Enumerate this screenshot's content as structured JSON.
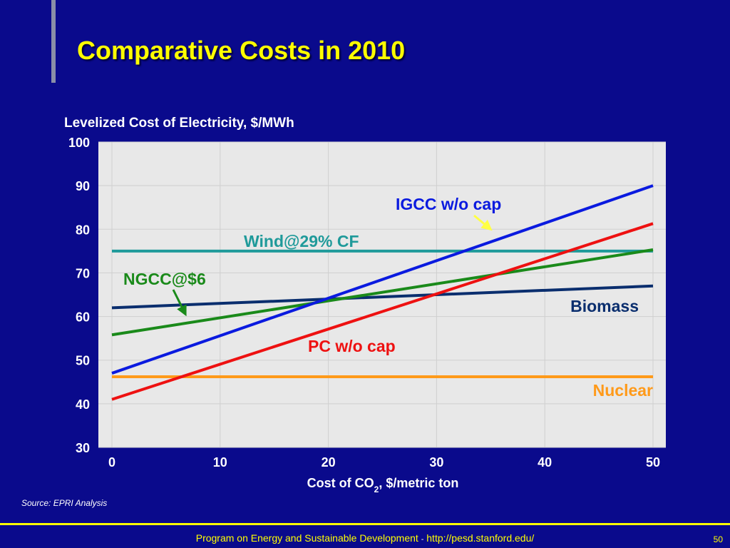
{
  "slide": {
    "title": "Comparative Costs in 2010",
    "source": "Source: EPRI Analysis",
    "footer": {
      "text": "Program on Energy and Sustainable Development",
      "separator": "-",
      "url": "http://pesd.stanford.edu/"
    },
    "page_number": "50"
  },
  "chart_data": {
    "type": "line",
    "ylabel": "Levelized Cost of Electricity, $/MWh",
    "xlabel_main": "Cost of CO",
    "xlabel_sub": "2",
    "xlabel_rest": ", $/metric ton",
    "xlim": [
      0,
      50
    ],
    "ylim": [
      30,
      100
    ],
    "xticks": [
      0,
      10,
      20,
      30,
      40,
      50
    ],
    "yticks": [
      30,
      40,
      50,
      60,
      70,
      80,
      90,
      100
    ],
    "grid": true,
    "series": [
      {
        "name": "Nuclear",
        "color": "#ff9a1a",
        "x": [
          0,
          50
        ],
        "y": [
          46.2,
          46.2
        ]
      },
      {
        "name": "Wind@29% CF",
        "color": "#1f9a9a",
        "x": [
          0,
          50
        ],
        "y": [
          75,
          75
        ]
      },
      {
        "name": "Biomass",
        "color": "#0a2e6e",
        "x": [
          0,
          50
        ],
        "y": [
          62,
          67
        ]
      },
      {
        "name": "NGCC@$6",
        "color": "#1a8a1a",
        "x": [
          0,
          50
        ],
        "y": [
          55.8,
          75.3
        ]
      },
      {
        "name": "PC w/o cap",
        "color": "#ee1111",
        "x": [
          0,
          50
        ],
        "y": [
          41,
          81.3
        ]
      },
      {
        "name": "IGCC w/o cap",
        "color": "#0a1adf",
        "x": [
          0,
          50
        ],
        "y": [
          47,
          90
        ]
      }
    ],
    "annotations": [
      {
        "text": "IGCC w/o cap",
        "color": "#0a1adf",
        "arrow": true,
        "arrow_color": "#ffff44",
        "arrow_target": [
          35,
          80
        ]
      },
      {
        "text": "Wind@29% CF",
        "color": "#1f9a9a",
        "arrow": false
      },
      {
        "text": "NGCC@$6",
        "color": "#1a8a1a",
        "arrow": true,
        "arrow_color": "#1a8a1a",
        "arrow_target": [
          6.8,
          60.5
        ]
      },
      {
        "text": "Biomass",
        "color": "#0a2e6e",
        "arrow": false
      },
      {
        "text": "PC w/o cap",
        "color": "#ee1111",
        "arrow": false
      },
      {
        "text": "Nuclear",
        "color": "#ff9a1a",
        "arrow": false
      }
    ]
  }
}
